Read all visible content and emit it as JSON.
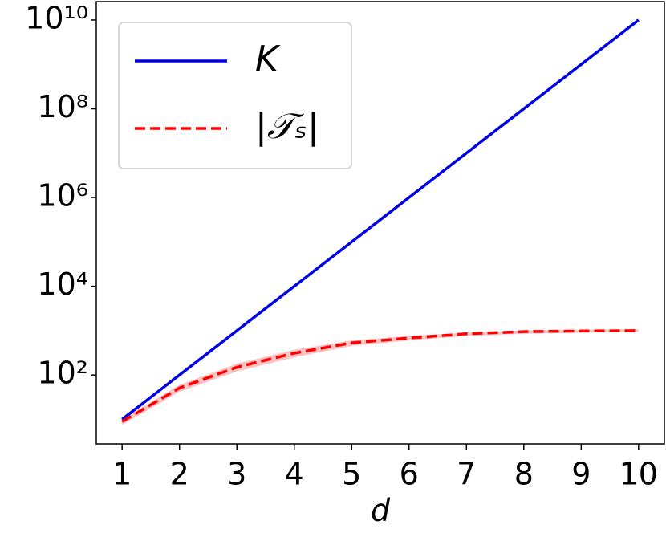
{
  "chart_data": {
    "type": "line",
    "x": [
      1,
      2,
      3,
      4,
      5,
      6,
      7,
      8,
      9,
      10
    ],
    "x_label": "d",
    "series": [
      {
        "name": "K",
        "color": "#0000e6",
        "style": "solid",
        "values": [
          10,
          100,
          1000,
          10000,
          100000,
          1000000,
          10000000,
          100000000,
          1000000000,
          10000000000
        ]
      },
      {
        "name": "|𝒯ₛ|",
        "color": "#ff0000",
        "style": "dashed",
        "band_color": "#ffb3b3",
        "values": [
          8.9,
          51,
          150,
          310,
          530,
          680,
          850,
          950,
          980,
          1000
        ],
        "band_low": [
          7.5,
          42,
          120,
          250,
          450,
          600,
          760,
          850,
          900,
          940
        ],
        "band_high": [
          10,
          60,
          180,
          370,
          600,
          760,
          900,
          1020,
          1050,
          1070
        ]
      }
    ],
    "xlim": [
      0.55,
      10.45
    ],
    "xticks": [
      1,
      2,
      3,
      4,
      5,
      6,
      7,
      8,
      9,
      10
    ],
    "ylim": [
      2.8,
      26000000000
    ],
    "yscale": "log",
    "yticks": [
      {
        "value": 100,
        "label": "10²"
      },
      {
        "value": 10000,
        "label": "10⁴"
      },
      {
        "value": 1000000,
        "label": "10⁶"
      },
      {
        "value": 100000000,
        "label": "10⁸"
      },
      {
        "value": 10000000000,
        "label": "10¹⁰"
      }
    ],
    "legend": "upper left"
  }
}
